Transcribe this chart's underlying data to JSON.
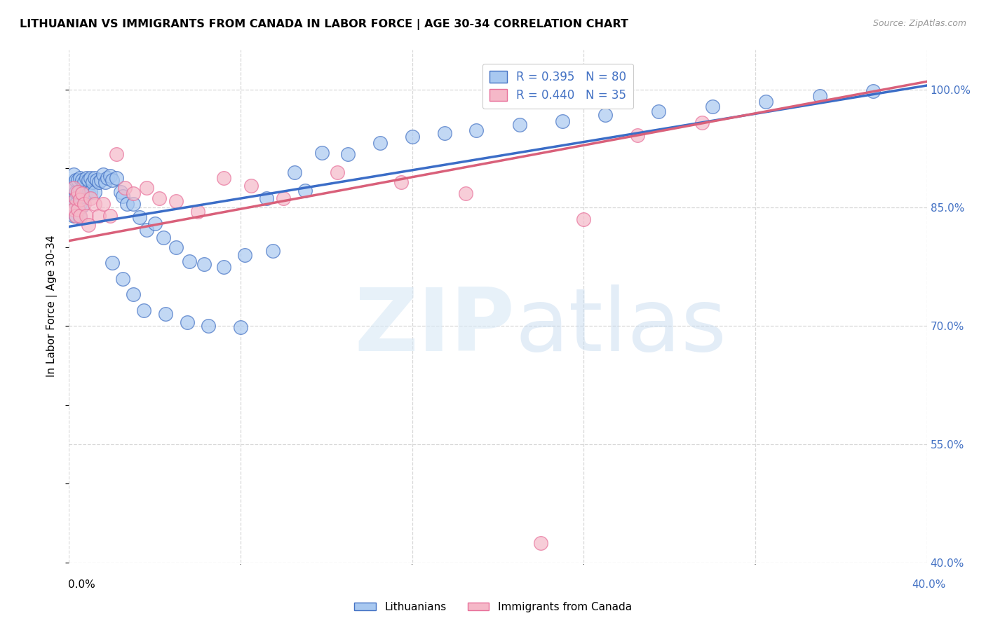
{
  "title": "LITHUANIAN VS IMMIGRANTS FROM CANADA IN LABOR FORCE | AGE 30-34 CORRELATION CHART",
  "source": "Source: ZipAtlas.com",
  "ylabel": "In Labor Force | Age 30-34",
  "xlim": [
    0.0,
    0.4
  ],
  "ylim": [
    0.4,
    1.05
  ],
  "xtick_positions": [
    0.0,
    0.08,
    0.16,
    0.24,
    0.32,
    0.4
  ],
  "ytick_positions": [
    0.4,
    0.55,
    0.7,
    0.85,
    1.0
  ],
  "ytick_labels": [
    "40.0%",
    "55.0%",
    "70.0%",
    "85.0%",
    "100.0%"
  ],
  "R_blue": 0.395,
  "N_blue": 80,
  "R_pink": 0.44,
  "N_pink": 35,
  "blue_fill": "#A8C8F0",
  "blue_edge": "#4472C4",
  "pink_fill": "#F5B8C8",
  "pink_edge": "#E8709A",
  "blue_line_color": "#3B6DC7",
  "pink_line_color": "#D9607A",
  "grid_color": "#D8D8D8",
  "bg_color": "#FFFFFF",
  "tick_color": "#4472C4",
  "blue_trend_x0": 0.0,
  "blue_trend_y0": 0.826,
  "blue_trend_x1": 0.4,
  "blue_trend_y1": 1.005,
  "pink_trend_x0": 0.0,
  "pink_trend_y0": 0.808,
  "pink_trend_x1": 0.4,
  "pink_trend_y1": 1.01,
  "blue_x": [
    0.001,
    0.001,
    0.001,
    0.002,
    0.002,
    0.002,
    0.002,
    0.003,
    0.003,
    0.003,
    0.003,
    0.004,
    0.004,
    0.004,
    0.005,
    0.005,
    0.005,
    0.005,
    0.006,
    0.006,
    0.006,
    0.007,
    0.007,
    0.008,
    0.008,
    0.009,
    0.009,
    0.01,
    0.01,
    0.011,
    0.012,
    0.012,
    0.013,
    0.014,
    0.015,
    0.016,
    0.017,
    0.018,
    0.019,
    0.02,
    0.022,
    0.024,
    0.025,
    0.027,
    0.03,
    0.033,
    0.036,
    0.04,
    0.044,
    0.05,
    0.056,
    0.063,
    0.072,
    0.082,
    0.092,
    0.105,
    0.118,
    0.13,
    0.145,
    0.16,
    0.175,
    0.19,
    0.21,
    0.23,
    0.25,
    0.275,
    0.3,
    0.325,
    0.35,
    0.375,
    0.02,
    0.025,
    0.03,
    0.035,
    0.045,
    0.055,
    0.065,
    0.08,
    0.095,
    0.11
  ],
  "blue_y": [
    0.87,
    0.88,
    0.86,
    0.892,
    0.875,
    0.858,
    0.84,
    0.885,
    0.87,
    0.855,
    0.84,
    0.885,
    0.868,
    0.85,
    0.888,
    0.872,
    0.855,
    0.838,
    0.885,
    0.87,
    0.852,
    0.882,
    0.865,
    0.888,
    0.87,
    0.885,
    0.868,
    0.888,
    0.87,
    0.882,
    0.888,
    0.87,
    0.885,
    0.882,
    0.885,
    0.892,
    0.882,
    0.888,
    0.89,
    0.885,
    0.888,
    0.87,
    0.865,
    0.855,
    0.855,
    0.838,
    0.822,
    0.83,
    0.812,
    0.8,
    0.782,
    0.778,
    0.775,
    0.79,
    0.862,
    0.895,
    0.92,
    0.918,
    0.932,
    0.94,
    0.945,
    0.948,
    0.955,
    0.96,
    0.968,
    0.972,
    0.978,
    0.985,
    0.992,
    0.998,
    0.78,
    0.76,
    0.74,
    0.72,
    0.715,
    0.705,
    0.7,
    0.698,
    0.795,
    0.872
  ],
  "pink_x": [
    0.001,
    0.002,
    0.002,
    0.003,
    0.003,
    0.004,
    0.004,
    0.005,
    0.005,
    0.006,
    0.007,
    0.008,
    0.009,
    0.01,
    0.012,
    0.014,
    0.016,
    0.019,
    0.022,
    0.026,
    0.03,
    0.036,
    0.042,
    0.05,
    0.06,
    0.072,
    0.085,
    0.1,
    0.125,
    0.155,
    0.185,
    0.22,
    0.265,
    0.295,
    0.24
  ],
  "pink_y": [
    0.85,
    0.875,
    0.848,
    0.862,
    0.84,
    0.87,
    0.848,
    0.86,
    0.84,
    0.868,
    0.855,
    0.84,
    0.828,
    0.862,
    0.855,
    0.84,
    0.855,
    0.84,
    0.918,
    0.875,
    0.868,
    0.875,
    0.862,
    0.858,
    0.845,
    0.888,
    0.878,
    0.862,
    0.895,
    0.882,
    0.868,
    0.425,
    0.942,
    0.958,
    0.835
  ]
}
